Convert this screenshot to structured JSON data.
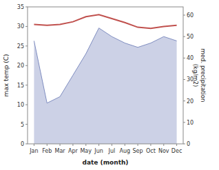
{
  "chart_data": {
    "type": "line",
    "xlabel": "date (month)",
    "ylabel": "max temp (C)",
    "y2label": "med. precipitation\n(kg/m2)",
    "categories": [
      "Jan",
      "Feb",
      "Mar",
      "Apr",
      "May",
      "Jun",
      "Jul",
      "Aug",
      "Sep",
      "Oct",
      "Nov",
      "Dec"
    ],
    "series": [
      {
        "type": "area",
        "axis": "y2",
        "color": "#7f8dc0",
        "values": [
          48,
          19,
          22,
          32,
          42,
          54,
          50,
          47,
          45,
          47,
          50,
          48
        ]
      },
      {
        "type": "line",
        "color": "#c0504d",
        "values": [
          30.5,
          30.3,
          30.5,
          31.2,
          32.5,
          33.0,
          32.0,
          31.0,
          29.8,
          29.5,
          30.0,
          30.3
        ]
      }
    ],
    "ylim": [
      0,
      35
    ],
    "yticks": [
      0,
      5,
      10,
      15,
      20,
      25,
      30,
      35
    ],
    "y2lim": [
      0,
      63.85
    ],
    "y2ticks": [
      0,
      10,
      20,
      30,
      40,
      50,
      60
    ],
    "grid": false
  }
}
